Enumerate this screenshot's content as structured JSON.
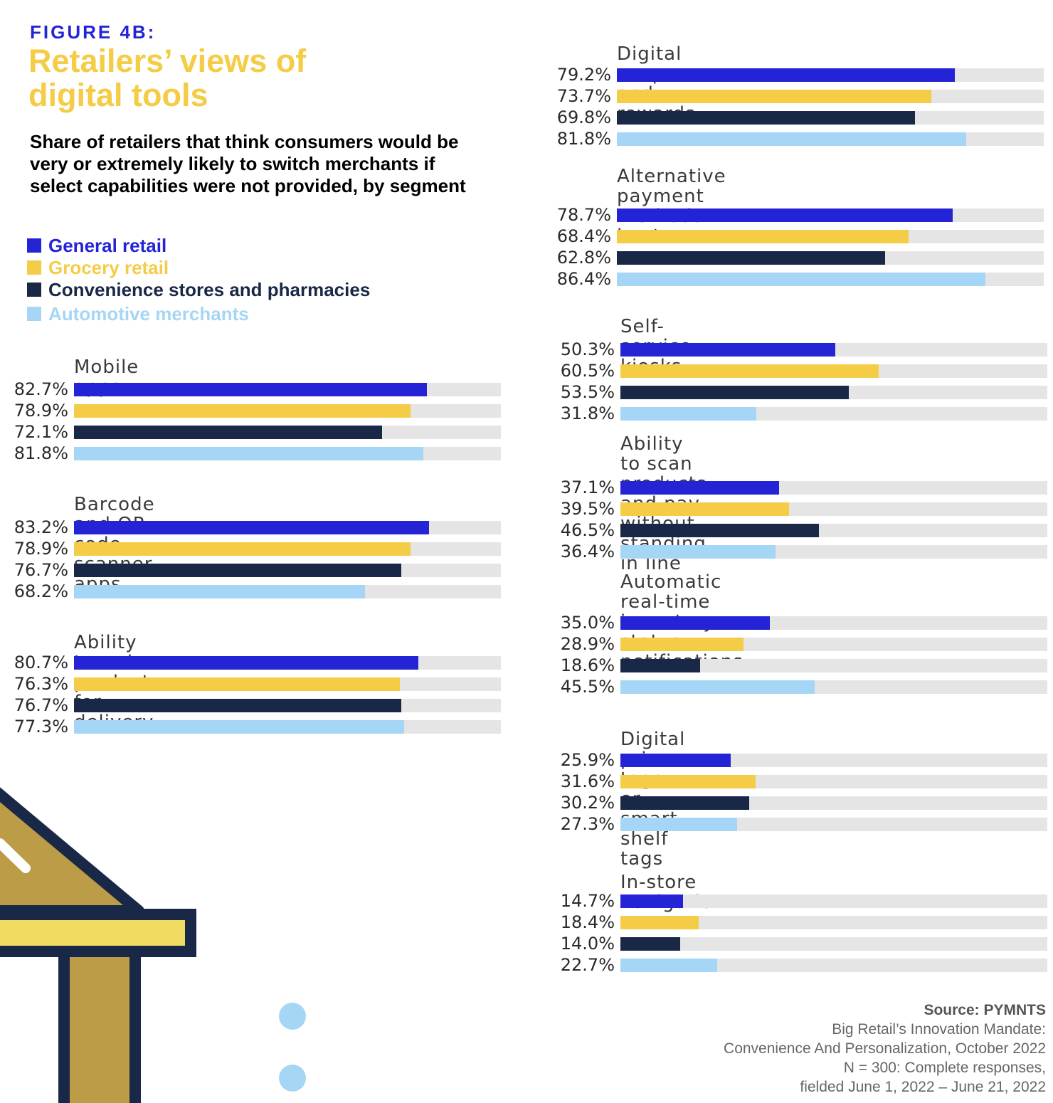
{
  "figure_label": "FIGURE 4B:",
  "title": "Retailers’ views of digital tools",
  "subtitle": "Share of retailers that think consumers would be very or extremely likely to switch merchants if select capabilities were not provided, by segment",
  "colors": {
    "general": "#2424d6",
    "grocery": "#f5cc45",
    "convenience": "#1a2847",
    "automotive": "#a6d6f5",
    "track": "#e5e5e5",
    "title": "#f5cc45",
    "figure_label": "#2424d6",
    "decor_gold": "#bd9c48",
    "decor_yellow": "#f0dc62",
    "decor_navy": "#1a2847",
    "decor_dot": "#a6d6f5"
  },
  "legend": [
    {
      "label": "General retail",
      "color": "#2424d6"
    },
    {
      "label": "Grocery retail",
      "color": "#f5cc45"
    },
    {
      "label": "Convenience stores and pharmacies",
      "color": "#1a2847"
    },
    {
      "label": "Automotive merchants",
      "color": "#a6d6f5"
    }
  ],
  "chart_data": {
    "type": "bar",
    "orientation": "horizontal",
    "value_range": [
      0,
      100
    ],
    "unit": "%",
    "series": [
      "General retail",
      "Grocery retail",
      "Convenience stores and pharmacies",
      "Automotive merchants"
    ],
    "panels": [
      {
        "title": "Mobile apps",
        "values": [
          82.7,
          78.9,
          72.1,
          81.8
        ],
        "labels": [
          "82.7%",
          "78.9%",
          "72.1%",
          "81.8%"
        ]
      },
      {
        "title": "Barcode and QR code scanner apps",
        "values": [
          83.2,
          78.9,
          76.7,
          68.2
        ],
        "labels": [
          "83.2%",
          "78.9%",
          "76.7%",
          "68.2%"
        ]
      },
      {
        "title": "Ability to order products for delivery",
        "values": [
          80.7,
          76.3,
          76.7,
          77.3
        ],
        "labels": [
          "80.7%",
          "76.3%",
          "76.7%",
          "77.3%"
        ]
      },
      {
        "title": "Digital coupons and rewards",
        "values": [
          79.2,
          73.7,
          69.8,
          81.8
        ],
        "labels": [
          "79.2%",
          "73.7%",
          "69.8%",
          "81.8%"
        ]
      },
      {
        "title": "Alternative payment methods\nin-store",
        "values": [
          78.7,
          68.4,
          62.8,
          86.4
        ],
        "labels": [
          "78.7%",
          "68.4%",
          "62.8%",
          "86.4%"
        ]
      },
      {
        "title": "Self-service kiosks",
        "values": [
          50.3,
          60.5,
          53.5,
          31.8
        ],
        "labels": [
          "50.3%",
          "60.5%",
          "53.5%",
          "31.8%"
        ]
      },
      {
        "title": "Ability to scan products and pay without\nstanding in line",
        "values": [
          37.1,
          39.5,
          46.5,
          36.4
        ],
        "labels": [
          "37.1%",
          "39.5%",
          "46.5%",
          "36.4%"
        ]
      },
      {
        "title": "Automatic real-time inventory\nstatus notifications",
        "values": [
          35.0,
          28.9,
          18.6,
          45.5
        ],
        "labels": [
          "35.0%",
          "28.9%",
          "18.6%",
          "45.5%"
        ]
      },
      {
        "title": "Digital price tags or smart shelf tags",
        "values": [
          25.9,
          31.6,
          30.2,
          27.3
        ],
        "labels": [
          "25.9%",
          "31.6%",
          "30.2%",
          "27.3%"
        ]
      },
      {
        "title": "In-store navigation",
        "values": [
          14.7,
          18.4,
          14.0,
          22.7
        ],
        "labels": [
          "14.7%",
          "18.4%",
          "14.0%",
          "22.7%"
        ]
      }
    ]
  },
  "source": {
    "heading": "Source: PYMNTS",
    "lines": [
      "Big Retail’s Innovation Mandate:",
      "Convenience And Personalization, October 2022",
      "N = 300: Complete responses,",
      "fielded June 1, 2022 – June 21, 2022"
    ]
  }
}
